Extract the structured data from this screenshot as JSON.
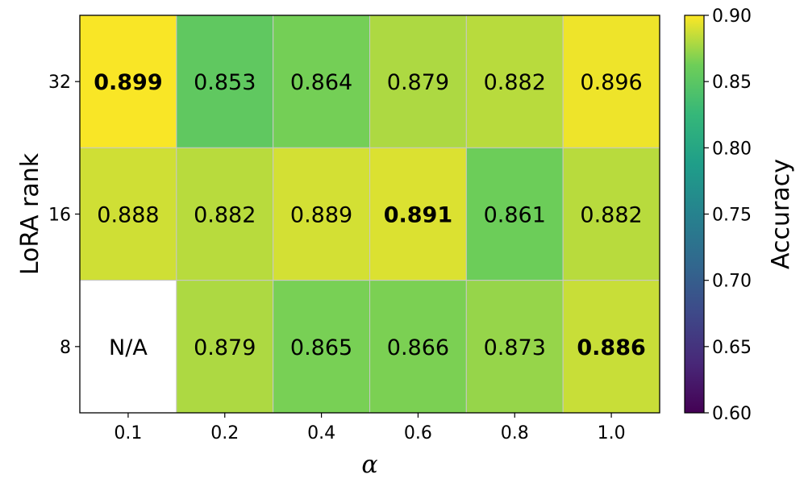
{
  "chart_data": {
    "type": "heatmap",
    "xlabel": "α",
    "ylabel": "LoRA rank",
    "x_categories": [
      "0.1",
      "0.2",
      "0.4",
      "0.6",
      "0.8",
      "1.0"
    ],
    "y_categories": [
      "32",
      "16",
      "8"
    ],
    "values": [
      [
        0.899,
        0.853,
        0.864,
        0.879,
        0.882,
        0.896
      ],
      [
        0.888,
        0.882,
        0.889,
        0.891,
        0.861,
        0.882
      ],
      [
        null,
        0.879,
        0.865,
        0.866,
        0.873,
        0.886
      ]
    ],
    "cell_labels": [
      [
        "0.899",
        "0.853",
        "0.864",
        "0.879",
        "0.882",
        "0.896"
      ],
      [
        "0.888",
        "0.882",
        "0.889",
        "0.891",
        "0.861",
        "0.882"
      ],
      [
        "N/A",
        "0.879",
        "0.865",
        "0.866",
        "0.873",
        "0.886"
      ]
    ],
    "bold_cells": [
      [
        0,
        0
      ],
      [
        1,
        3
      ],
      [
        2,
        5
      ]
    ],
    "missing_cell_color": "#ffffff",
    "colormap": "viridis",
    "grid_color": "#c8c8c8",
    "colorbar": {
      "label": "Accuracy",
      "range": [
        0.6,
        0.9
      ],
      "ticks": [
        "0.60",
        "0.65",
        "0.70",
        "0.75",
        "0.80",
        "0.85",
        "0.90"
      ]
    }
  }
}
